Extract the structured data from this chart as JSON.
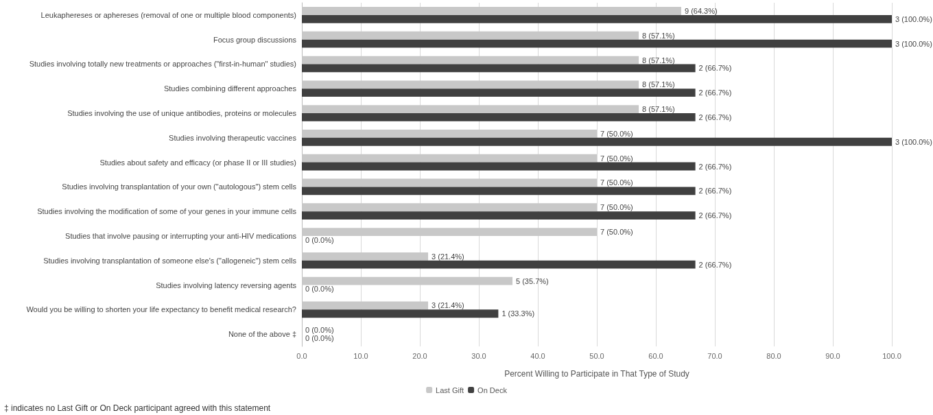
{
  "chart_data": {
    "type": "bar",
    "orientation": "horizontal",
    "categories": [
      "Leukaphereses or aphereses (removal of one or multiple blood components)",
      "Focus group discussions",
      "Studies involving totally new treatments or approaches (\"first-in-human\" studies)",
      "Studies combining different approaches",
      "Studies involving the use of unique antibodies, proteins or molecules",
      "Studies involving therapeutic vaccines",
      "Studies about safety and efficacy (or phase II or III studies)",
      "Studies involving transplantation of your own (\"autologous\") stem cells",
      "Studies involving the modification of some of your genes in your immune cells",
      "Studies that involve pausing or interrupting your anti-HIV medications",
      "Studies involving transplantation of someone else's (\"allogeneic\") stem cells",
      "Studies involving latency reversing agents",
      "Would you be willing to shorten your life expectancy to benefit medical research?",
      "None of the above ‡"
    ],
    "series": [
      {
        "name": "Last Gift",
        "color": "#c8c8c8",
        "values": [
          64.3,
          57.1,
          57.1,
          57.1,
          57.1,
          50.0,
          50.0,
          50.0,
          50.0,
          50.0,
          21.4,
          35.7,
          21.4,
          0.0
        ],
        "value_labels": [
          "9 (64.3%)",
          "8 (57.1%)",
          "8 (57.1%)",
          "8 (57.1%)",
          "8 (57.1%)",
          "7 (50.0%)",
          "7 (50.0%)",
          "7 (50.0%)",
          "7 (50.0%)",
          "7 (50.0%)",
          "3 (21.4%)",
          "5 (35.7%)",
          "3 (21.4%)",
          "0 (0.0%)"
        ]
      },
      {
        "name": "On Deck",
        "color": "#404040",
        "values": [
          100.0,
          100.0,
          66.7,
          66.7,
          66.7,
          100.0,
          66.7,
          66.7,
          66.7,
          0.0,
          66.7,
          0.0,
          33.3,
          0.0
        ],
        "value_labels": [
          "3 (100.0%)",
          "3 (100.0%)",
          "2 (66.7%)",
          "2 (66.7%)",
          "2 (66.7%)",
          "3 (100.0%)",
          "2 (66.7%)",
          "2 (66.7%)",
          "2 (66.7%)",
          "0 (0.0%)",
          "2 (66.7%)",
          "0 (0.0%)",
          "1 (33.3%)",
          "0 (0.0%)"
        ]
      }
    ],
    "xlabel": "Percent Willing to Participate in That Type of Study",
    "xlim": [
      0,
      100
    ],
    "xticks": [
      {
        "value": 0,
        "label": "0.0"
      },
      {
        "value": 10,
        "label": "10.0"
      },
      {
        "value": 20,
        "label": "20.0"
      },
      {
        "value": 30,
        "label": "30.0"
      },
      {
        "value": 40,
        "label": "40.0"
      },
      {
        "value": 50,
        "label": "50.0"
      },
      {
        "value": 60,
        "label": "60.0"
      },
      {
        "value": 70,
        "label": "70.0"
      },
      {
        "value": 80,
        "label": "80.0"
      },
      {
        "value": 90,
        "label": "90.0"
      },
      {
        "value": 100,
        "label": "100.0"
      }
    ],
    "grid": "x",
    "legend": "bottom",
    "annotations": [
      "‡ indicates no Last Gift or On Deck participant agreed with this statement"
    ]
  }
}
